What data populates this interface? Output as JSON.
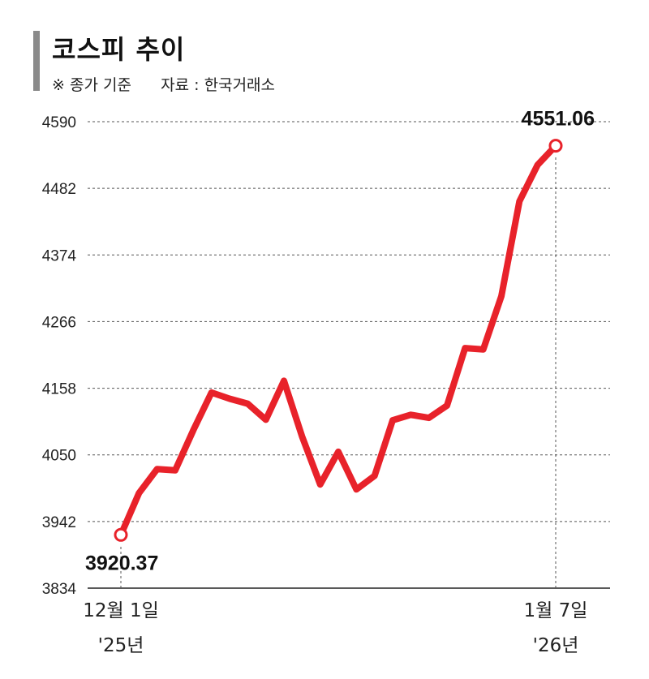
{
  "title": "코스피 추이",
  "subtitle_note": "※ 종가 기준",
  "subtitle_source": "자료 : 한국거래소",
  "colors": {
    "line": "#e8222a",
    "grid": "#555555",
    "title_bar": "#8a8a8a"
  },
  "chart_data": {
    "type": "line",
    "title": "코스피 추이",
    "xlabel": "",
    "ylabel": "",
    "ylim": [
      3834,
      4590
    ],
    "y_ticks": [
      4590,
      4482,
      4374,
      4266,
      4158,
      4050,
      3942,
      3834
    ],
    "grid": "horizontal dashed",
    "x_tick_labels": [
      {
        "line1": "12월 1일",
        "line2": "'25년"
      },
      {
        "line1": "1월 7일",
        "line2": "'26년"
      }
    ],
    "series": [
      {
        "values": [
          3920.37,
          3988,
          4027,
          4025,
          4090,
          4151,
          4141,
          4133,
          4107,
          4170,
          4080,
          4002,
          4055,
          3994,
          4016,
          4106,
          4115,
          4110,
          4130,
          4223,
          4221,
          4307,
          4461,
          4520,
          4551.06
        ]
      }
    ],
    "data_labels": [
      {
        "point": "first",
        "text": "3920.37"
      },
      {
        "point": "last",
        "text": "4551.06"
      }
    ]
  }
}
